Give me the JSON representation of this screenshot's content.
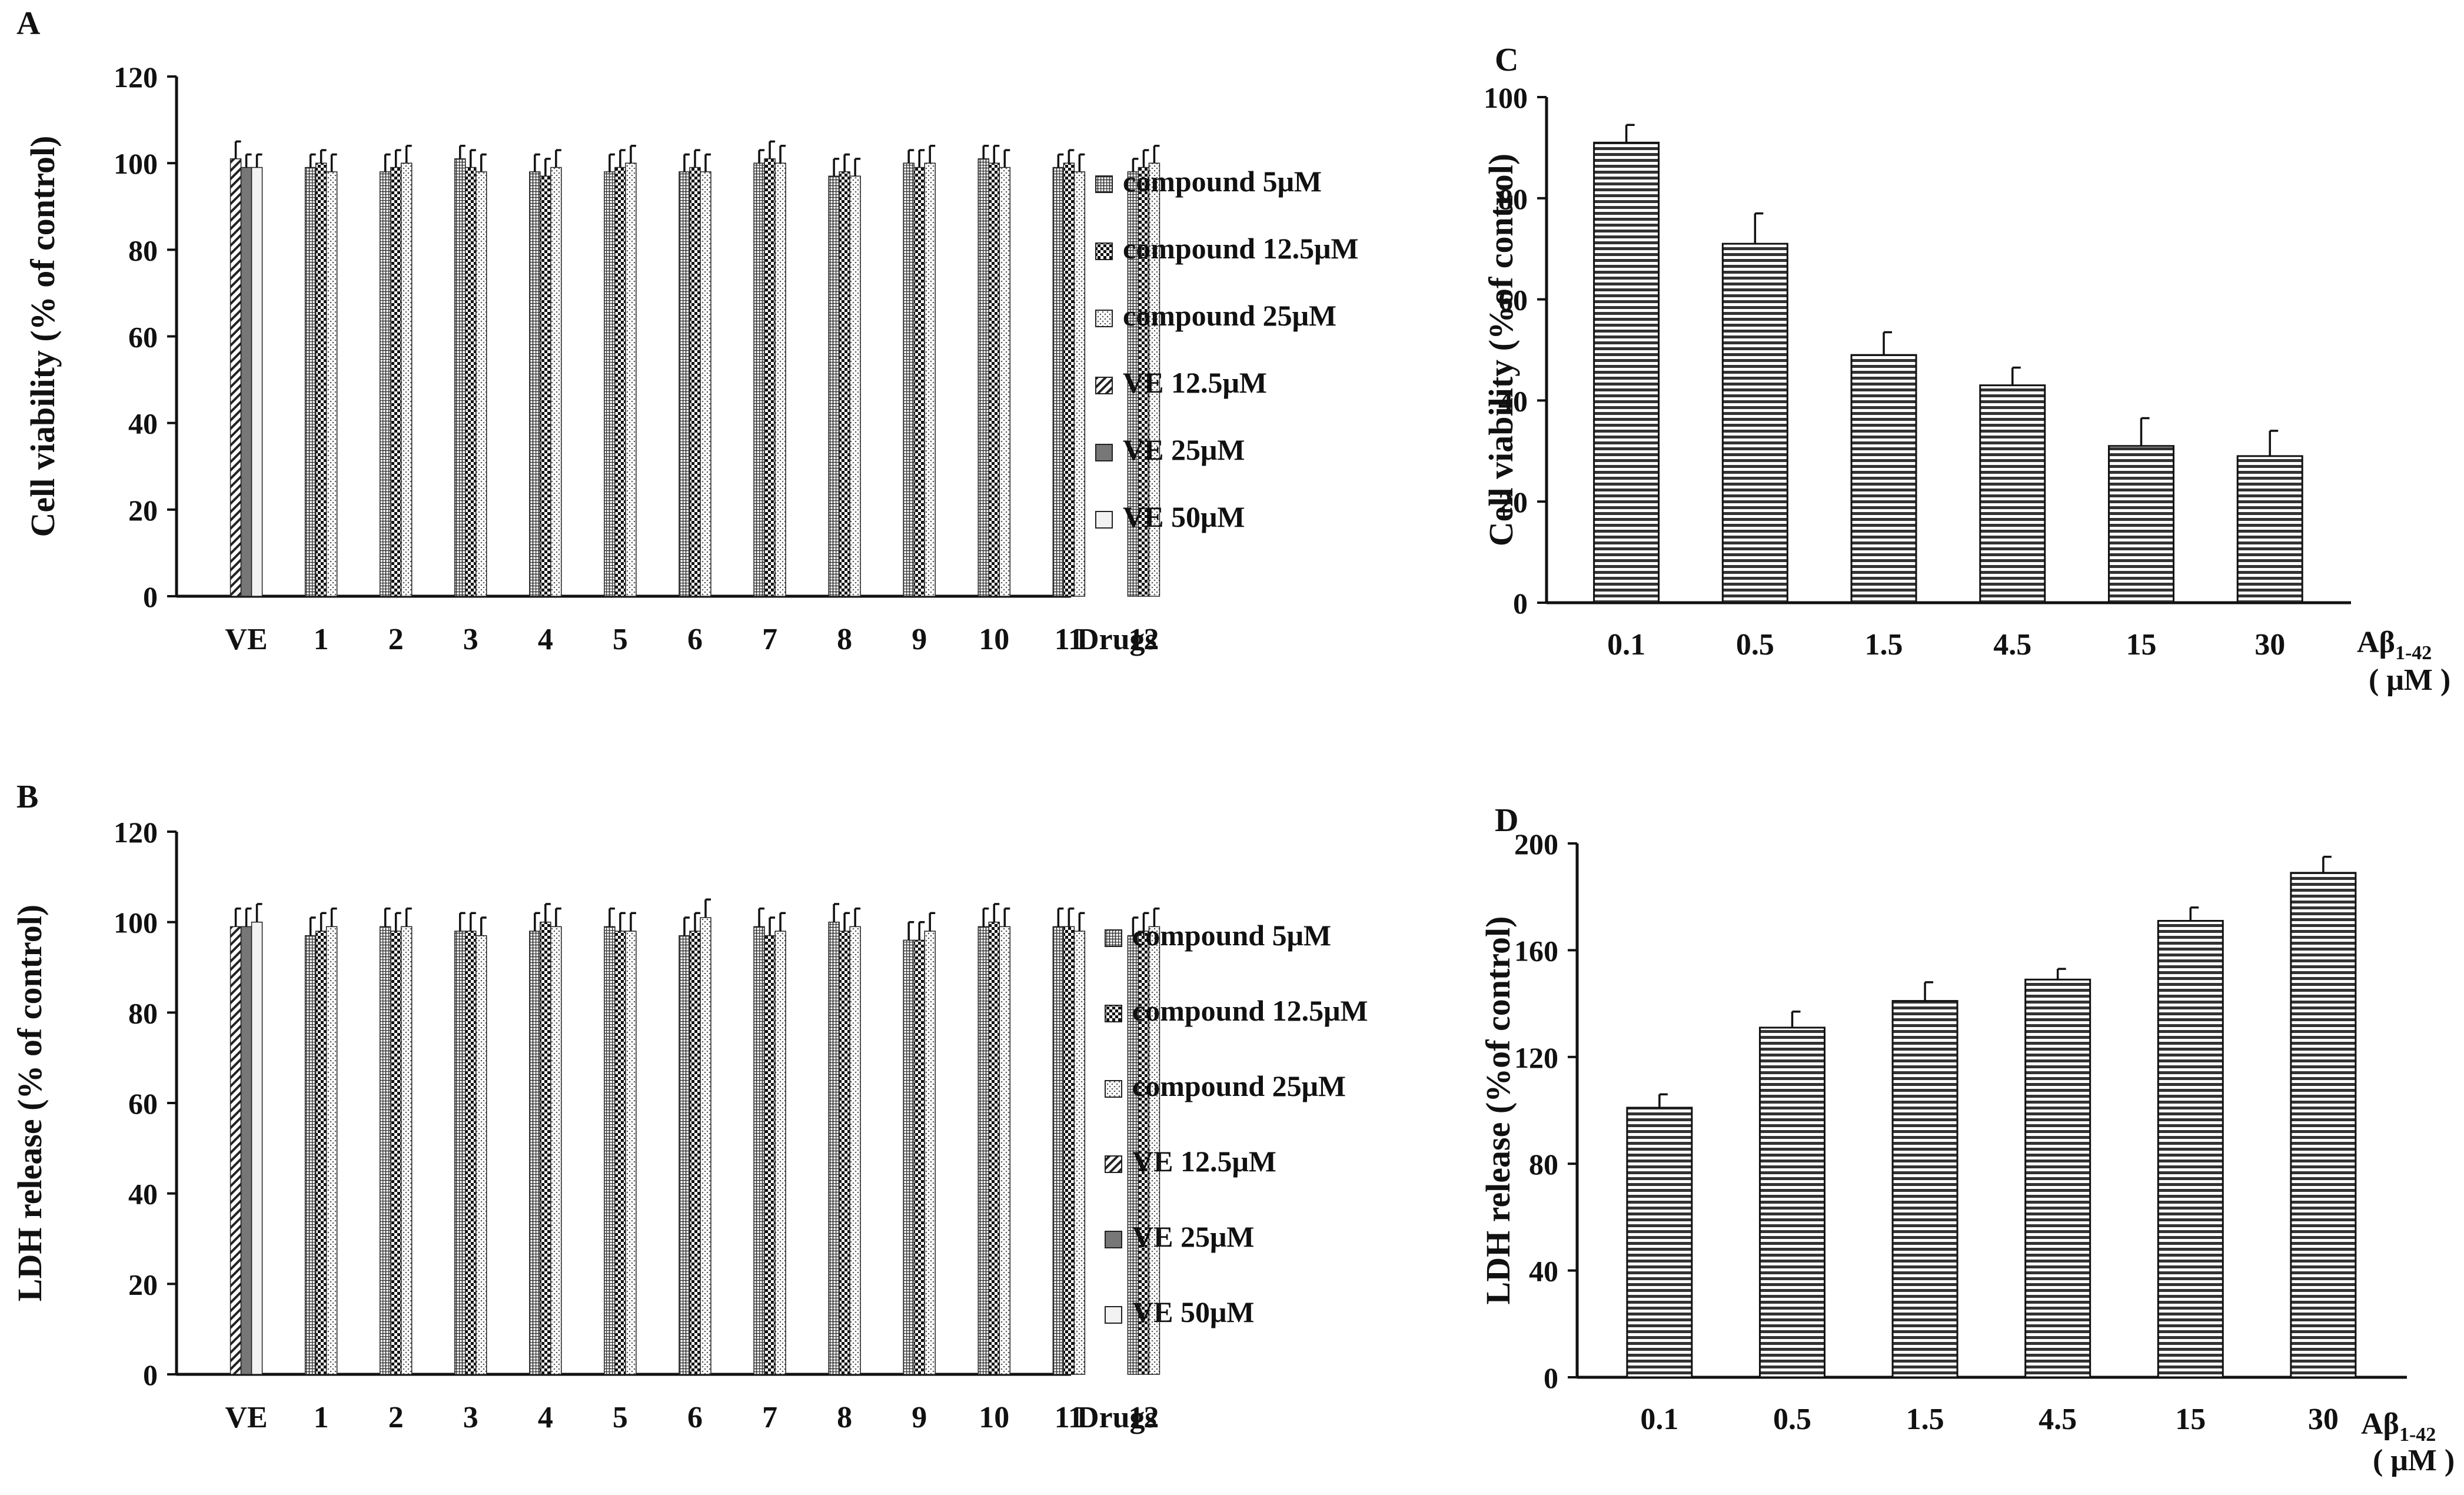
{
  "chart_data": [
    {
      "panel": "A",
      "type": "bar",
      "ylabel": "Cell viability (% of control)",
      "xlabel": "Drugs",
      "ylim": [
        0,
        120
      ],
      "yticks": [
        0,
        20,
        40,
        60,
        80,
        100,
        120
      ],
      "categories": [
        "VE",
        "1",
        "2",
        "3",
        "4",
        "5",
        "6",
        "7",
        "8",
        "9",
        "10",
        "11",
        "12"
      ],
      "legend": [
        "compound 5μM",
        "compound 12.5μM",
        "compound 25μM",
        "VE 12.5μM",
        "VE 25μM",
        "VE 50μM"
      ],
      "series": [
        {
          "name": "compound 5μM",
          "pattern": "grid",
          "values": [
            null,
            99,
            98,
            101,
            98,
            98,
            98,
            100,
            97,
            100,
            101,
            99,
            98
          ],
          "errors": [
            null,
            3,
            4,
            3,
            4,
            4,
            4,
            3,
            4,
            3,
            3,
            3,
            3
          ]
        },
        {
          "name": "compound 12.5μM",
          "pattern": "checker",
          "values": [
            null,
            100,
            99,
            99,
            97,
            99,
            99,
            101,
            98,
            99,
            100,
            100,
            99
          ],
          "errors": [
            null,
            3,
            4,
            4,
            4,
            4,
            4,
            4,
            4,
            4,
            4,
            3,
            4
          ]
        },
        {
          "name": "compound 25μM",
          "pattern": "dots",
          "values": [
            null,
            98,
            100,
            98,
            99,
            100,
            98,
            100,
            97,
            100,
            99,
            98,
            100
          ],
          "errors": [
            null,
            4,
            4,
            4,
            4,
            4,
            4,
            4,
            4,
            4,
            4,
            4,
            4
          ]
        },
        {
          "name": "VE 12.5μM",
          "pattern": "diagonal",
          "values": [
            101,
            null,
            null,
            null,
            null,
            null,
            null,
            null,
            null,
            null,
            null,
            null,
            null
          ],
          "errors": [
            4,
            null,
            null,
            null,
            null,
            null,
            null,
            null,
            null,
            null,
            null,
            null,
            null
          ]
        },
        {
          "name": "VE 25μM",
          "pattern": "solid",
          "values": [
            99,
            null,
            null,
            null,
            null,
            null,
            null,
            null,
            null,
            null,
            null,
            null,
            null
          ],
          "errors": [
            3,
            null,
            null,
            null,
            null,
            null,
            null,
            null,
            null,
            null,
            null,
            null,
            null
          ]
        },
        {
          "name": "VE 50μM",
          "pattern": "light",
          "values": [
            99,
            null,
            null,
            null,
            null,
            null,
            null,
            null,
            null,
            null,
            null,
            null,
            null
          ],
          "errors": [
            3,
            null,
            null,
            null,
            null,
            null,
            null,
            null,
            null,
            null,
            null,
            null,
            null
          ]
        }
      ]
    },
    {
      "panel": "B",
      "type": "bar",
      "ylabel": "LDH release (% of control)",
      "xlabel": "Drugs",
      "ylim": [
        0,
        120
      ],
      "yticks": [
        0,
        20,
        40,
        60,
        80,
        100,
        120
      ],
      "categories": [
        "VE",
        "1",
        "2",
        "3",
        "4",
        "5",
        "6",
        "7",
        "8",
        "9",
        "10",
        "11",
        "12"
      ],
      "legend": [
        "compound 5μM",
        "compound 12.5μM",
        "compound 25μM",
        "VE 12.5μM",
        "VE 25μM",
        "VE 50μM"
      ],
      "series": [
        {
          "name": "compound 5μM",
          "pattern": "grid",
          "values": [
            null,
            97,
            99,
            98,
            98,
            99,
            97,
            99,
            100,
            96,
            99,
            99,
            97
          ],
          "errors": [
            null,
            4,
            4,
            4,
            4,
            4,
            4,
            4,
            4,
            4,
            4,
            4,
            4
          ]
        },
        {
          "name": "compound 12.5μM",
          "pattern": "checker",
          "values": [
            null,
            98,
            98,
            98,
            100,
            98,
            98,
            97,
            98,
            96,
            100,
            99,
            98
          ],
          "errors": [
            null,
            4,
            4,
            4,
            4,
            4,
            4,
            4,
            4,
            4,
            4,
            4,
            4
          ]
        },
        {
          "name": "compound 25μM",
          "pattern": "dots",
          "values": [
            null,
            99,
            99,
            97,
            99,
            98,
            101,
            98,
            99,
            98,
            99,
            98,
            99
          ],
          "errors": [
            null,
            4,
            4,
            4,
            4,
            4,
            4,
            4,
            4,
            4,
            4,
            4,
            4
          ]
        },
        {
          "name": "VE 12.5μM",
          "pattern": "diagonal",
          "values": [
            99,
            null,
            null,
            null,
            null,
            null,
            null,
            null,
            null,
            null,
            null,
            null,
            null
          ],
          "errors": [
            4,
            null,
            null,
            null,
            null,
            null,
            null,
            null,
            null,
            null,
            null,
            null,
            null
          ]
        },
        {
          "name": "VE 25μM",
          "pattern": "solid",
          "values": [
            99,
            null,
            null,
            null,
            null,
            null,
            null,
            null,
            null,
            null,
            null,
            null,
            null
          ],
          "errors": [
            4,
            null,
            null,
            null,
            null,
            null,
            null,
            null,
            null,
            null,
            null,
            null,
            null
          ]
        },
        {
          "name": "VE 50μM",
          "pattern": "light",
          "values": [
            100,
            null,
            null,
            null,
            null,
            null,
            null,
            null,
            null,
            null,
            null,
            null,
            null
          ],
          "errors": [
            4,
            null,
            null,
            null,
            null,
            null,
            null,
            null,
            null,
            null,
            null,
            null,
            null
          ]
        }
      ]
    },
    {
      "panel": "C",
      "type": "bar",
      "ylabel": "Cell viability (%of control)",
      "xlabel": "Aβ1-42 (μM)",
      "xlabel_main": "Aβ",
      "xlabel_sub": "1-42",
      "xlabel_unit": "( μM )",
      "ylim": [
        0,
        100
      ],
      "yticks": [
        0,
        20,
        40,
        60,
        80,
        100
      ],
      "categories": [
        "0.1",
        "0.5",
        "1.5",
        "4.5",
        "15",
        "30"
      ],
      "values": [
        91,
        71,
        49,
        43,
        31,
        29
      ],
      "errors": [
        3.5,
        6,
        4.5,
        3.5,
        5.5,
        5
      ]
    },
    {
      "panel": "D",
      "type": "bar",
      "ylabel": "LDH release (%of control)",
      "xlabel": "Aβ1-42 (μM)",
      "xlabel_main": "Aβ",
      "xlabel_sub": "1-42",
      "xlabel_unit": "( μM )",
      "ylim": [
        0,
        200
      ],
      "yticks": [
        0,
        40,
        80,
        120,
        160,
        200
      ],
      "categories": [
        "0.1",
        "0.5",
        "1.5",
        "4.5",
        "15",
        "30"
      ],
      "values": [
        101,
        131,
        141,
        149,
        171,
        189
      ],
      "errors": [
        5,
        6,
        7,
        4,
        5,
        6
      ]
    }
  ]
}
